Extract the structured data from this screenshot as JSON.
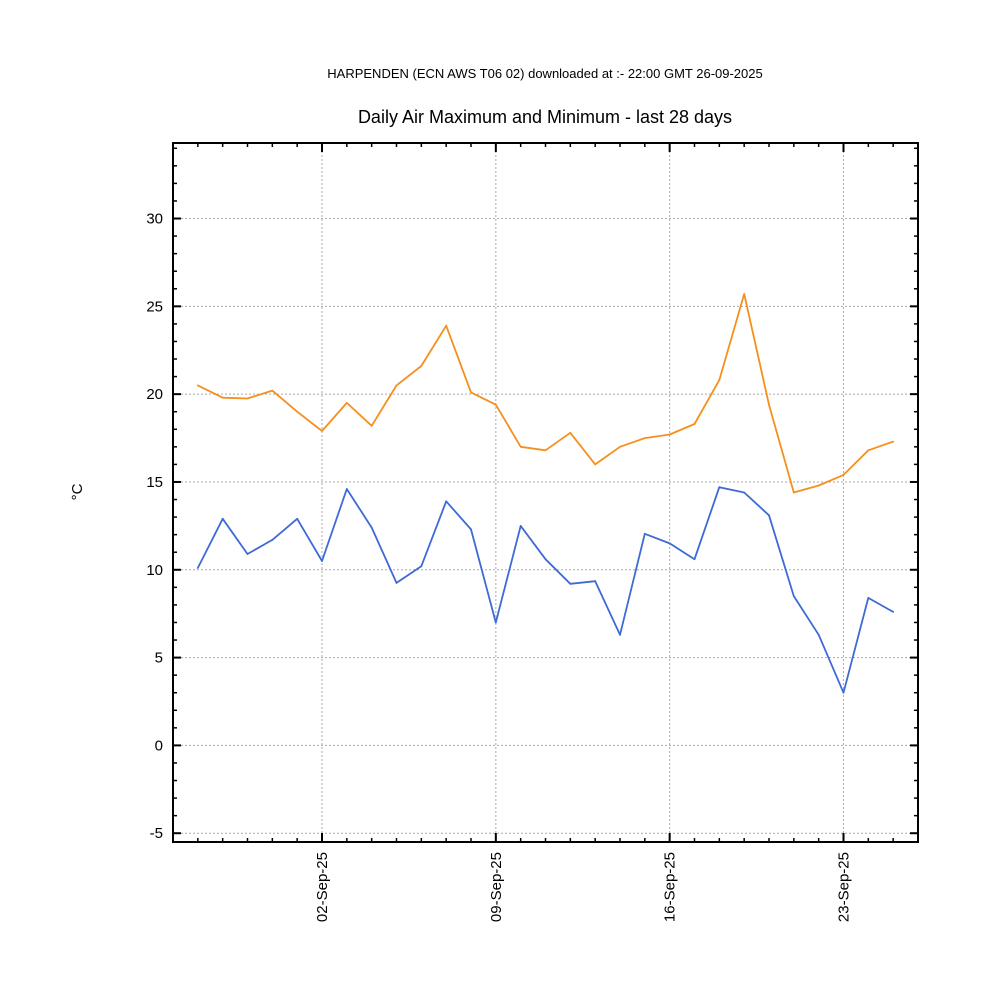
{
  "header": {
    "subtitle": "HARPENDEN (ECN AWS T06 02) downloaded at :- 22:00 GMT 26-09-2025",
    "title": "Daily Air Maximum and Minimum - last 28 days"
  },
  "chart_data": {
    "type": "line",
    "title": "Daily Air Maximum and Minimum - last 28 days",
    "subtitle": "HARPENDEN (ECN AWS T06 02) downloaded at :- 22:00 GMT 26-09-2025",
    "ylabel": "°C",
    "xlabel": "",
    "ylim": [
      -5.5,
      34.3
    ],
    "yticks": [
      -5,
      0,
      5,
      10,
      15,
      20,
      25,
      30
    ],
    "x": [
      "2025-08-28",
      "2025-08-29",
      "2025-08-30",
      "2025-08-31",
      "2025-09-01",
      "2025-09-02",
      "2025-09-03",
      "2025-09-04",
      "2025-09-05",
      "2025-09-06",
      "2025-09-07",
      "2025-09-08",
      "2025-09-09",
      "2025-09-10",
      "2025-09-11",
      "2025-09-12",
      "2025-09-13",
      "2025-09-14",
      "2025-09-15",
      "2025-09-16",
      "2025-09-17",
      "2025-09-18",
      "2025-09-19",
      "2025-09-20",
      "2025-09-21",
      "2025-09-22",
      "2025-09-23",
      "2025-09-24",
      "2025-09-25"
    ],
    "xlim": [
      "2025-08-27",
      "2025-09-26"
    ],
    "x_tick_labels": [
      {
        "date": "2025-09-02",
        "label": "02-Sep-25"
      },
      {
        "date": "2025-09-09",
        "label": "09-Sep-25"
      },
      {
        "date": "2025-09-16",
        "label": "16-Sep-25"
      },
      {
        "date": "2025-09-23",
        "label": "23-Sep-25"
      }
    ],
    "grid": true,
    "series": [
      {
        "color": "#f5901e",
        "values": [
          20.5,
          19.8,
          19.75,
          20.2,
          19.0,
          17.9,
          19.5,
          18.2,
          20.5,
          21.6,
          23.9,
          20.1,
          19.4,
          17.0,
          16.8,
          17.8,
          16.0,
          17.0,
          17.5,
          17.7,
          18.3,
          20.8,
          25.7,
          19.4,
          14.4,
          14.8,
          15.4,
          16.8,
          17.3
        ]
      },
      {
        "color": "#3e6ad8",
        "values": [
          10.1,
          12.9,
          10.9,
          11.7,
          12.9,
          10.5,
          14.6,
          12.4,
          9.25,
          10.2,
          13.9,
          12.3,
          7.0,
          12.5,
          10.6,
          9.2,
          9.35,
          6.3,
          12.05,
          11.5,
          10.6,
          14.7,
          14.4,
          13.1,
          8.5,
          6.3,
          3.0,
          8.4,
          7.6
        ]
      }
    ]
  }
}
